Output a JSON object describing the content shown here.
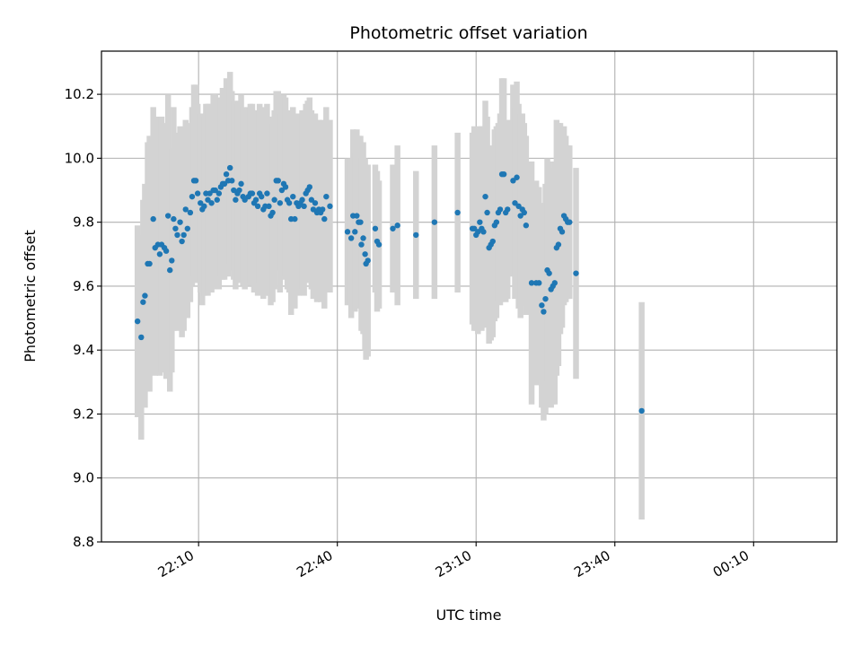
{
  "chart_data": {
    "type": "scatter",
    "title": "Photometric offset variation",
    "xlabel": "UTC time",
    "ylabel": "Photometric offset",
    "x_ticks": [
      {
        "t": 130,
        "label": "22:10"
      },
      {
        "t": 160,
        "label": "22:40"
      },
      {
        "t": 190,
        "label": "23:10"
      },
      {
        "t": 220,
        "label": "23:40"
      },
      {
        "t": 250,
        "label": "00:10"
      }
    ],
    "y_ticks": [
      8.8,
      9.0,
      9.2,
      9.4,
      9.6,
      9.8,
      10.0,
      10.2
    ],
    "xlim": [
      109,
      268
    ],
    "ylim": [
      8.8,
      10.335
    ],
    "grid": true,
    "colors": {
      "point": "#1f77b4",
      "errorbar": "#d3d3d3",
      "grid": "#b0b0b0"
    },
    "points": [
      [
        116.8,
        9.49,
        0.3
      ],
      [
        117.6,
        9.44,
        0.32
      ],
      [
        118.0,
        9.55,
        0.32
      ],
      [
        118.4,
        9.57,
        0.35
      ],
      [
        119.0,
        9.67,
        0.38
      ],
      [
        119.4,
        9.67,
        0.4
      ],
      [
        120.2,
        9.81,
        0.35
      ],
      [
        120.6,
        9.72,
        0.4
      ],
      [
        121.2,
        9.73,
        0.4
      ],
      [
        121.6,
        9.7,
        0.38
      ],
      [
        122.0,
        9.73,
        0.4
      ],
      [
        122.6,
        9.72,
        0.38
      ],
      [
        123.0,
        9.71,
        0.4
      ],
      [
        123.4,
        9.82,
        0.38
      ],
      [
        123.8,
        9.65,
        0.38
      ],
      [
        124.2,
        9.68,
        0.35
      ],
      [
        124.6,
        9.81,
        0.35
      ],
      [
        125.0,
        9.78,
        0.3
      ],
      [
        125.4,
        9.76,
        0.3
      ],
      [
        126.0,
        9.8,
        0.3
      ],
      [
        126.4,
        9.74,
        0.3
      ],
      [
        126.8,
        9.76,
        0.3
      ],
      [
        127.2,
        9.84,
        0.28
      ],
      [
        127.6,
        9.78,
        0.28
      ],
      [
        128.2,
        9.83,
        0.28
      ],
      [
        128.6,
        9.88,
        0.28
      ],
      [
        129.0,
        9.93,
        0.3
      ],
      [
        129.4,
        9.93,
        0.3
      ],
      [
        129.8,
        9.89,
        0.28
      ],
      [
        130.4,
        9.86,
        0.28
      ],
      [
        130.8,
        9.84,
        0.3
      ],
      [
        131.2,
        9.85,
        0.28
      ],
      [
        131.6,
        9.89,
        0.28
      ],
      [
        132.0,
        9.87,
        0.3
      ],
      [
        132.4,
        9.89,
        0.28
      ],
      [
        132.8,
        9.86,
        0.28
      ],
      [
        133.2,
        9.9,
        0.3
      ],
      [
        133.6,
        9.9,
        0.3
      ],
      [
        134.0,
        9.87,
        0.28
      ],
      [
        134.4,
        9.89,
        0.3
      ],
      [
        134.8,
        9.91,
        0.28
      ],
      [
        135.2,
        9.92,
        0.3
      ],
      [
        135.6,
        9.92,
        0.3
      ],
      [
        136.0,
        9.95,
        0.3
      ],
      [
        136.4,
        9.93,
        0.3
      ],
      [
        136.8,
        9.97,
        0.3
      ],
      [
        137.2,
        9.93,
        0.28
      ],
      [
        137.6,
        9.9,
        0.28
      ],
      [
        138.0,
        9.87,
        0.28
      ],
      [
        138.4,
        9.89,
        0.28
      ],
      [
        138.8,
        9.9,
        0.28
      ],
      [
        139.2,
        9.92,
        0.28
      ],
      [
        139.6,
        9.88,
        0.28
      ],
      [
        140.0,
        9.87,
        0.28
      ],
      [
        140.8,
        9.88,
        0.28
      ],
      [
        141.2,
        9.89,
        0.28
      ],
      [
        141.6,
        9.89,
        0.28
      ],
      [
        142.0,
        9.86,
        0.28
      ],
      [
        142.4,
        9.87,
        0.28
      ],
      [
        142.8,
        9.85,
        0.28
      ],
      [
        143.2,
        9.89,
        0.28
      ],
      [
        143.6,
        9.88,
        0.28
      ],
      [
        144.0,
        9.84,
        0.28
      ],
      [
        144.4,
        9.85,
        0.28
      ],
      [
        144.8,
        9.89,
        0.28
      ],
      [
        145.2,
        9.85,
        0.28
      ],
      [
        145.6,
        9.82,
        0.28
      ],
      [
        146.0,
        9.83,
        0.28
      ],
      [
        146.4,
        9.87,
        0.28
      ],
      [
        146.8,
        9.93,
        0.28
      ],
      [
        147.2,
        9.93,
        0.28
      ],
      [
        147.6,
        9.86,
        0.28
      ],
      [
        148.0,
        9.9,
        0.28
      ],
      [
        148.4,
        9.92,
        0.28
      ],
      [
        148.8,
        9.91,
        0.28
      ],
      [
        149.2,
        9.87,
        0.28
      ],
      [
        149.6,
        9.86,
        0.28
      ],
      [
        150.0,
        9.81,
        0.3
      ],
      [
        150.4,
        9.88,
        0.28
      ],
      [
        150.8,
        9.81,
        0.28
      ],
      [
        151.2,
        9.86,
        0.28
      ],
      [
        151.6,
        9.85,
        0.28
      ],
      [
        152.0,
        9.86,
        0.28
      ],
      [
        152.4,
        9.87,
        0.28
      ],
      [
        152.8,
        9.85,
        0.28
      ],
      [
        153.2,
        9.89,
        0.28
      ],
      [
        153.6,
        9.9,
        0.28
      ],
      [
        154.0,
        9.91,
        0.28
      ],
      [
        154.4,
        9.87,
        0.28
      ],
      [
        154.8,
        9.84,
        0.28
      ],
      [
        155.2,
        9.86,
        0.28
      ],
      [
        155.6,
        9.83,
        0.28
      ],
      [
        156.0,
        9.84,
        0.28
      ],
      [
        156.4,
        9.83,
        0.28
      ],
      [
        156.8,
        9.84,
        0.28
      ],
      [
        157.2,
        9.81,
        0.28
      ],
      [
        157.6,
        9.88,
        0.28
      ],
      [
        158.4,
        9.85,
        0.27
      ],
      [
        162.2,
        9.77,
        0.23
      ],
      [
        163.0,
        9.75,
        0.25
      ],
      [
        163.4,
        9.82,
        0.27
      ],
      [
        163.8,
        9.77,
        0.25
      ],
      [
        164.2,
        9.82,
        0.27
      ],
      [
        164.6,
        9.8,
        0.27
      ],
      [
        165.0,
        9.8,
        0.27
      ],
      [
        165.2,
        9.73,
        0.27
      ],
      [
        165.6,
        9.75,
        0.3
      ],
      [
        166.0,
        9.7,
        0.3
      ],
      [
        166.2,
        9.67,
        0.3
      ],
      [
        166.6,
        9.68,
        0.3
      ],
      [
        168.2,
        9.78,
        0.2
      ],
      [
        168.6,
        9.74,
        0.22
      ],
      [
        169.0,
        9.73,
        0.2
      ],
      [
        172.0,
        9.78,
        0.2
      ],
      [
        173.0,
        9.79,
        0.25
      ],
      [
        177.0,
        9.76,
        0.2
      ],
      [
        181.0,
        9.8,
        0.24
      ],
      [
        186.0,
        9.83,
        0.25
      ],
      [
        189.2,
        9.78,
        0.3
      ],
      [
        189.6,
        9.78,
        0.32
      ],
      [
        190.0,
        9.76,
        0.3
      ],
      [
        190.4,
        9.77,
        0.32
      ],
      [
        190.8,
        9.8,
        0.3
      ],
      [
        191.2,
        9.78,
        0.32
      ],
      [
        191.6,
        9.77,
        0.3
      ],
      [
        192.0,
        9.88,
        0.3
      ],
      [
        192.4,
        9.83,
        0.3
      ],
      [
        192.8,
        9.72,
        0.3
      ],
      [
        193.2,
        9.73,
        0.3
      ],
      [
        193.6,
        9.74,
        0.3
      ],
      [
        194.0,
        9.79,
        0.3
      ],
      [
        194.4,
        9.8,
        0.3
      ],
      [
        194.8,
        9.83,
        0.28
      ],
      [
        195.2,
        9.84,
        0.3
      ],
      [
        195.6,
        9.95,
        0.3
      ],
      [
        196.0,
        9.95,
        0.3
      ],
      [
        196.4,
        9.83,
        0.28
      ],
      [
        196.8,
        9.84,
        0.28
      ],
      [
        198.0,
        9.93,
        0.3
      ],
      [
        198.4,
        9.86,
        0.3
      ],
      [
        198.8,
        9.94,
        0.3
      ],
      [
        199.2,
        9.85,
        0.32
      ],
      [
        199.6,
        9.82,
        0.32
      ],
      [
        200.0,
        9.84,
        0.3
      ],
      [
        200.4,
        9.83,
        0.28
      ],
      [
        200.8,
        9.79,
        0.28
      ],
      [
        202.0,
        9.61,
        0.38
      ],
      [
        203.0,
        9.61,
        0.32
      ],
      [
        203.6,
        9.61,
        0.3
      ],
      [
        204.2,
        9.54,
        0.32
      ],
      [
        204.6,
        9.52,
        0.34
      ],
      [
        205.0,
        9.56,
        0.36
      ],
      [
        205.4,
        9.65,
        0.35
      ],
      [
        205.8,
        9.64,
        0.35
      ],
      [
        206.2,
        9.59,
        0.37
      ],
      [
        206.6,
        9.6,
        0.37
      ],
      [
        207.0,
        9.61,
        0.38
      ],
      [
        207.4,
        9.72,
        0.4
      ],
      [
        207.8,
        9.73,
        0.38
      ],
      [
        208.2,
        9.78,
        0.33
      ],
      [
        208.6,
        9.77,
        0.3
      ],
      [
        209.0,
        9.82,
        0.28
      ],
      [
        209.4,
        9.81,
        0.26
      ],
      [
        209.8,
        9.8,
        0.24
      ],
      [
        210.2,
        9.8,
        0.24
      ],
      [
        211.6,
        9.64,
        0.33
      ],
      [
        225.8,
        9.21,
        0.34
      ]
    ]
  }
}
